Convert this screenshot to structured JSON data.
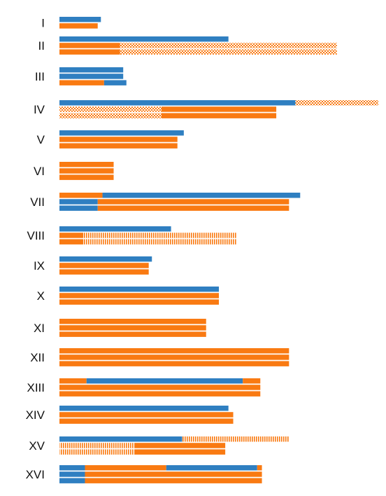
{
  "colors": {
    "blue": "#2f7fc1",
    "orange": "#f97a12",
    "background": "#ffffff",
    "gap": "#ffffff"
  },
  "chart_data": {
    "type": "bar",
    "orientation": "horizontal",
    "subtype": "stacked-segment-lines",
    "xlim": [
      0,
      100
    ],
    "axes_visible": false,
    "grid": false,
    "legend": "none",
    "categories": [
      "I",
      "II",
      "III",
      "IV",
      "V",
      "VI",
      "VII",
      "VIII",
      "IX",
      "X",
      "XI",
      "XII",
      "XIII",
      "XIV",
      "XV",
      "XVI"
    ],
    "rows": [
      {
        "label": "I",
        "lines": [
          [
            {
              "from": 0,
              "to": 13,
              "color": "blue"
            }
          ],
          [
            {
              "from": 0,
              "to": 12,
              "color": "orange"
            }
          ]
        ]
      },
      {
        "label": "II",
        "lines": [
          [
            {
              "from": 0,
              "to": 53,
              "color": "blue"
            }
          ],
          [
            {
              "from": 0,
              "to": 19,
              "color": "orange"
            },
            {
              "from": 19,
              "to": 87,
              "color": "orange",
              "pattern": "checker"
            }
          ],
          [
            {
              "from": 0,
              "to": 19,
              "color": "orange"
            },
            {
              "from": 19,
              "to": 87,
              "color": "orange",
              "pattern": "checker"
            }
          ]
        ]
      },
      {
        "label": "III",
        "lines": [
          [
            {
              "from": 0,
              "to": 20,
              "color": "blue"
            }
          ],
          [
            {
              "from": 0,
              "to": 20,
              "color": "blue"
            }
          ],
          [
            {
              "from": 0,
              "to": 14,
              "color": "orange"
            },
            {
              "from": 14,
              "to": 21,
              "color": "blue"
            }
          ]
        ]
      },
      {
        "label": "IV",
        "lines": [
          [
            {
              "from": 0,
              "to": 74,
              "color": "blue"
            },
            {
              "from": 74,
              "to": 100,
              "color": "orange",
              "pattern": "checker"
            }
          ],
          [
            {
              "from": 0,
              "to": 32,
              "color": "orange",
              "pattern": "checker"
            },
            {
              "from": 32,
              "to": 68,
              "color": "orange"
            }
          ],
          [
            {
              "from": 0,
              "to": 32,
              "color": "orange",
              "pattern": "checker"
            },
            {
              "from": 32,
              "to": 68,
              "color": "orange"
            }
          ]
        ]
      },
      {
        "label": "V",
        "lines": [
          [
            {
              "from": 0,
              "to": 39,
              "color": "blue"
            }
          ],
          [
            {
              "from": 0,
              "to": 37,
              "color": "orange"
            }
          ],
          [
            {
              "from": 0,
              "to": 37,
              "color": "orange"
            }
          ]
        ]
      },
      {
        "label": "VI",
        "lines": [
          [
            {
              "from": 0,
              "to": 17,
              "color": "orange"
            }
          ],
          [
            {
              "from": 0,
              "to": 17,
              "color": "orange"
            }
          ],
          [
            {
              "from": 0,
              "to": 17,
              "color": "orange"
            }
          ]
        ]
      },
      {
        "label": "VII",
        "lines": [
          [
            {
              "from": 0,
              "to": 13.5,
              "color": "orange"
            },
            {
              "from": 13.5,
              "to": 75.5,
              "color": "blue"
            }
          ],
          [
            {
              "from": 0,
              "to": 12,
              "color": "blue"
            },
            {
              "from": 12,
              "to": 72,
              "color": "orange"
            }
          ],
          [
            {
              "from": 0,
              "to": 12,
              "color": "blue"
            },
            {
              "from": 12,
              "to": 72,
              "color": "orange"
            }
          ]
        ]
      },
      {
        "label": "VIII",
        "lines": [
          [
            {
              "from": 0,
              "to": 35,
              "color": "blue"
            }
          ],
          [
            {
              "from": 0,
              "to": 7.5,
              "color": "orange"
            },
            {
              "from": 7.5,
              "to": 55.5,
              "color": "orange",
              "pattern": "vlines"
            }
          ],
          [
            {
              "from": 0,
              "to": 7.5,
              "color": "orange"
            },
            {
              "from": 7.5,
              "to": 55.5,
              "color": "orange",
              "pattern": "vlines"
            }
          ]
        ]
      },
      {
        "label": "IX",
        "lines": [
          [
            {
              "from": 0,
              "to": 29,
              "color": "blue"
            }
          ],
          [
            {
              "from": 0,
              "to": 28,
              "color": "orange"
            }
          ],
          [
            {
              "from": 0,
              "to": 28,
              "color": "orange"
            }
          ]
        ]
      },
      {
        "label": "X",
        "lines": [
          [
            {
              "from": 0,
              "to": 50,
              "color": "blue"
            }
          ],
          [
            {
              "from": 0,
              "to": 50,
              "color": "orange"
            }
          ],
          [
            {
              "from": 0,
              "to": 50,
              "color": "orange"
            }
          ]
        ]
      },
      {
        "label": "XI",
        "lines": [
          [
            {
              "from": 0,
              "to": 46,
              "color": "orange"
            }
          ],
          [
            {
              "from": 0,
              "to": 46,
              "color": "orange"
            }
          ],
          [
            {
              "from": 0,
              "to": 46,
              "color": "orange"
            }
          ]
        ]
      },
      {
        "label": "XII",
        "lines": [
          [
            {
              "from": 0,
              "to": 72,
              "color": "orange"
            }
          ],
          [
            {
              "from": 0,
              "to": 72,
              "color": "orange"
            }
          ],
          [
            {
              "from": 0,
              "to": 72,
              "color": "orange"
            }
          ]
        ]
      },
      {
        "label": "XIII",
        "lines": [
          [
            {
              "from": 0,
              "to": 8.5,
              "color": "orange"
            },
            {
              "from": 8.5,
              "to": 57.5,
              "color": "blue"
            },
            {
              "from": 57.5,
              "to": 63,
              "color": "orange"
            }
          ],
          [
            {
              "from": 0,
              "to": 63,
              "color": "orange"
            }
          ],
          [
            {
              "from": 0,
              "to": 63,
              "color": "orange"
            }
          ]
        ]
      },
      {
        "label": "XIV",
        "lines": [
          [
            {
              "from": 0,
              "to": 53,
              "color": "blue"
            }
          ],
          [
            {
              "from": 0,
              "to": 54.5,
              "color": "orange"
            }
          ],
          [
            {
              "from": 0,
              "to": 54.5,
              "color": "orange"
            }
          ]
        ]
      },
      {
        "label": "XV",
        "lines": [
          [
            {
              "from": 0,
              "to": 38.5,
              "color": "blue"
            },
            {
              "from": 38.5,
              "to": 72,
              "color": "orange",
              "pattern": "vlines"
            }
          ],
          [
            {
              "from": 0,
              "to": 23.5,
              "color": "orange",
              "pattern": "vlines"
            },
            {
              "from": 23.5,
              "to": 52,
              "color": "orange"
            }
          ],
          [
            {
              "from": 0,
              "to": 23.5,
              "color": "orange",
              "pattern": "vlines"
            },
            {
              "from": 23.5,
              "to": 52,
              "color": "orange"
            }
          ]
        ]
      },
      {
        "label": "XVI",
        "lines": [
          [
            {
              "from": 0,
              "to": 8,
              "color": "blue"
            },
            {
              "from": 8,
              "to": 33.5,
              "color": "orange"
            },
            {
              "from": 33.5,
              "to": 62,
              "color": "blue"
            },
            {
              "from": 62,
              "to": 63.5,
              "color": "orange"
            }
          ],
          [
            {
              "from": 0,
              "to": 8,
              "color": "blue"
            },
            {
              "from": 8,
              "to": 63.5,
              "color": "orange"
            }
          ],
          [
            {
              "from": 0,
              "to": 8,
              "color": "blue"
            },
            {
              "from": 8,
              "to": 63.5,
              "color": "orange"
            }
          ]
        ]
      }
    ]
  }
}
